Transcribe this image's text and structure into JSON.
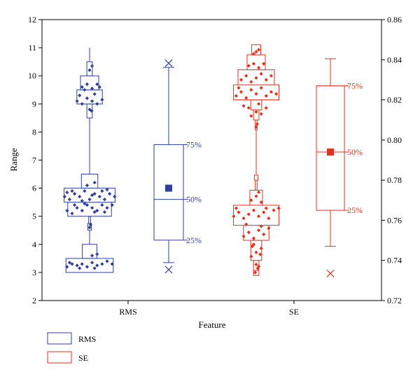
{
  "chart_data": {
    "type": "box",
    "xlabel": "Feature",
    "ylabel": "Range",
    "categories": [
      "RMS",
      "SE"
    ],
    "left_axis": {
      "min": 2,
      "max": 12,
      "ticks": [
        2,
        3,
        4,
        5,
        6,
        7,
        8,
        9,
        10,
        11,
        12
      ],
      "labels": [
        "2",
        "3",
        "4",
        "5",
        "6",
        "7",
        "8",
        "9",
        "10",
        "11",
        "12"
      ]
    },
    "right_axis": {
      "min": 0.72,
      "max": 0.86,
      "ticks": [
        0.72,
        0.74,
        0.76,
        0.78,
        0.8,
        0.82,
        0.84,
        0.86
      ],
      "labels": [
        "0.72",
        "0.74",
        "0.76",
        "0.78",
        "0.80",
        "0.82",
        "0.84",
        "0.86"
      ]
    },
    "colors": {
      "RMS": "#2e3f9e",
      "SE": "#e8301f"
    },
    "series": [
      {
        "name": "RMS",
        "axis": "left",
        "histogram": [
          {
            "lo": 3.0,
            "hi": 3.5,
            "width": 0.52
          },
          {
            "lo": 3.5,
            "hi": 4.0,
            "width": 0.16
          },
          {
            "lo": 4.5,
            "hi": 4.75,
            "width": 0.04
          },
          {
            "lo": 4.75,
            "hi": 5.0,
            "width": 0.02
          },
          {
            "lo": 5.0,
            "hi": 5.5,
            "width": 0.48
          },
          {
            "lo": 5.5,
            "hi": 6.0,
            "width": 0.56
          },
          {
            "lo": 6.0,
            "hi": 6.5,
            "width": 0.18
          },
          {
            "lo": 8.5,
            "hi": 9.0,
            "width": 0.06
          },
          {
            "lo": 9.0,
            "hi": 9.5,
            "width": 0.28
          },
          {
            "lo": 9.5,
            "hi": 10.0,
            "width": 0.2
          },
          {
            "lo": 10.0,
            "hi": 10.5,
            "width": 0.06
          }
        ],
        "line_range": [
          3.0,
          11.0
        ],
        "points": [
          [
            -0.45,
            3.2
          ],
          [
            -0.35,
            3.3
          ],
          [
            -0.25,
            3.25
          ],
          [
            -0.15,
            3.3
          ],
          [
            -0.05,
            3.2
          ],
          [
            0.05,
            3.35
          ],
          [
            0.15,
            3.25
          ],
          [
            0.25,
            3.3
          ],
          [
            0.35,
            3.4
          ],
          [
            0.45,
            3.3
          ],
          [
            -0.4,
            3.35
          ],
          [
            0.1,
            3.15
          ],
          [
            -0.2,
            3.15
          ],
          [
            0.05,
            3.6
          ],
          [
            0.15,
            3.65
          ],
          [
            0.0,
            4.6
          ],
          [
            0.02,
            4.7
          ],
          [
            -0.45,
            5.2
          ],
          [
            -0.35,
            5.1
          ],
          [
            -0.25,
            5.3
          ],
          [
            -0.15,
            5.2
          ],
          [
            -0.05,
            5.4
          ],
          [
            0.05,
            5.3
          ],
          [
            0.15,
            5.2
          ],
          [
            0.25,
            5.4
          ],
          [
            0.35,
            5.3
          ],
          [
            0.45,
            5.4
          ],
          [
            -0.3,
            5.4
          ],
          [
            0.1,
            5.15
          ],
          [
            -0.1,
            5.45
          ],
          [
            0.3,
            5.15
          ],
          [
            -0.5,
            5.7
          ],
          [
            -0.4,
            5.6
          ],
          [
            -0.3,
            5.8
          ],
          [
            -0.2,
            5.7
          ],
          [
            -0.1,
            5.9
          ],
          [
            0.0,
            5.6
          ],
          [
            0.1,
            5.8
          ],
          [
            0.2,
            5.7
          ],
          [
            0.3,
            5.6
          ],
          [
            0.4,
            5.8
          ],
          [
            0.5,
            5.7
          ],
          [
            -0.35,
            5.9
          ],
          [
            0.25,
            5.9
          ],
          [
            -0.15,
            5.55
          ],
          [
            0.35,
            5.95
          ],
          [
            -0.45,
            5.85
          ],
          [
            0.05,
            5.75
          ],
          [
            -0.05,
            6.1
          ],
          [
            0.1,
            6.2
          ],
          [
            0.0,
            8.8
          ],
          [
            0.04,
            8.75
          ],
          [
            -0.25,
            9.1
          ],
          [
            -0.15,
            9.0
          ],
          [
            -0.05,
            9.2
          ],
          [
            0.05,
            9.1
          ],
          [
            0.15,
            9.0
          ],
          [
            0.25,
            9.15
          ],
          [
            -0.2,
            9.3
          ],
          [
            0.1,
            9.35
          ],
          [
            -0.15,
            9.6
          ],
          [
            -0.05,
            9.7
          ],
          [
            0.05,
            9.55
          ],
          [
            0.15,
            9.7
          ],
          [
            0.2,
            9.6
          ],
          [
            -0.1,
            9.5
          ],
          [
            0.0,
            10.2
          ],
          [
            0.05,
            10.35
          ]
        ],
        "box": {
          "p25": 4.15,
          "median": 5.6,
          "p75": 7.55,
          "mean": 6.0,
          "whisker_low": 3.35,
          "whisker_high": 10.3,
          "min": 3.1,
          "max": 10.45
        },
        "box_labels": [
          "25%",
          "50%",
          "75%"
        ]
      },
      {
        "name": "SE",
        "axis": "right",
        "histogram": [
          {
            "lo": 0.7325,
            "hi": 0.735,
            "width": 0.06
          },
          {
            "lo": 0.735,
            "hi": 0.74,
            "width": 0.06
          },
          {
            "lo": 0.74,
            "hi": 0.75,
            "width": 0.12
          },
          {
            "lo": 0.75,
            "hi": 0.7575,
            "width": 0.28
          },
          {
            "lo": 0.7575,
            "hi": 0.7675,
            "width": 0.5
          },
          {
            "lo": 0.7675,
            "hi": 0.775,
            "width": 0.14
          },
          {
            "lo": 0.775,
            "hi": 0.78,
            "width": 0.02
          },
          {
            "lo": 0.78,
            "hi": 0.7825,
            "width": 0.04
          },
          {
            "lo": 0.805,
            "hi": 0.81,
            "width": 0.02
          },
          {
            "lo": 0.81,
            "hi": 0.815,
            "width": 0.06
          },
          {
            "lo": 0.815,
            "hi": 0.82,
            "width": 0.12
          },
          {
            "lo": 0.82,
            "hi": 0.8275,
            "width": 0.5
          },
          {
            "lo": 0.8275,
            "hi": 0.835,
            "width": 0.4
          },
          {
            "lo": 0.835,
            "hi": 0.8425,
            "width": 0.2
          },
          {
            "lo": 0.8425,
            "hi": 0.8475,
            "width": 0.1
          }
        ],
        "line_range": [
          0.7325,
          0.8475
        ],
        "points": [
          [
            -0.02,
            0.734
          ],
          [
            0.03,
            0.736
          ],
          [
            0.0,
            0.738
          ],
          [
            0.05,
            0.737
          ],
          [
            -0.1,
            0.742
          ],
          [
            0.0,
            0.744
          ],
          [
            0.1,
            0.746
          ],
          [
            -0.05,
            0.748
          ],
          [
            0.08,
            0.743
          ],
          [
            -0.08,
            0.747
          ],
          [
            -0.25,
            0.752
          ],
          [
            -0.15,
            0.754
          ],
          [
            -0.05,
            0.751
          ],
          [
            0.05,
            0.755
          ],
          [
            0.15,
            0.753
          ],
          [
            0.25,
            0.756
          ],
          [
            -0.2,
            0.758
          ],
          [
            0.1,
            0.757
          ],
          [
            -0.45,
            0.762
          ],
          [
            -0.35,
            0.764
          ],
          [
            -0.25,
            0.761
          ],
          [
            -0.15,
            0.763
          ],
          [
            -0.05,
            0.765
          ],
          [
            0.05,
            0.762
          ],
          [
            0.15,
            0.764
          ],
          [
            0.25,
            0.761
          ],
          [
            0.35,
            0.765
          ],
          [
            0.45,
            0.766
          ],
          [
            -0.4,
            0.766
          ],
          [
            0.2,
            0.766
          ],
          [
            -0.1,
            0.77
          ],
          [
            0.0,
            0.772
          ],
          [
            0.1,
            0.769
          ],
          [
            0.05,
            0.774
          ],
          [
            0.0,
            0.8065
          ],
          [
            0.02,
            0.808
          ],
          [
            -0.1,
            0.812
          ],
          [
            0.0,
            0.814
          ],
          [
            0.1,
            0.813
          ],
          [
            -0.25,
            0.817
          ],
          [
            -0.15,
            0.816
          ],
          [
            0.05,
            0.818
          ],
          [
            0.2,
            0.816
          ],
          [
            -0.4,
            0.822
          ],
          [
            -0.3,
            0.824
          ],
          [
            -0.2,
            0.821
          ],
          [
            -0.1,
            0.825
          ],
          [
            0.0,
            0.823
          ],
          [
            0.1,
            0.826
          ],
          [
            0.2,
            0.822
          ],
          [
            0.3,
            0.824
          ],
          [
            0.4,
            0.823
          ],
          [
            -0.35,
            0.826
          ],
          [
            -0.3,
            0.83
          ],
          [
            -0.2,
            0.832
          ],
          [
            -0.1,
            0.829
          ],
          [
            0.0,
            0.831
          ],
          [
            0.1,
            0.833
          ],
          [
            0.2,
            0.83
          ],
          [
            0.3,
            0.832
          ],
          [
            -0.15,
            0.837
          ],
          [
            -0.05,
            0.838
          ],
          [
            0.05,
            0.836
          ],
          [
            0.15,
            0.838
          ],
          [
            -0.05,
            0.843
          ],
          [
            0.05,
            0.845
          ],
          [
            0.0,
            0.844
          ]
        ],
        "box": {
          "p25": 0.765,
          "median": 0.794,
          "p75": 0.827,
          "mean": 0.794,
          "whisker_low": 0.747,
          "whisker_high": 0.8405,
          "min": 0.7335
        },
        "box_labels": [
          "25%",
          "50%",
          "75%"
        ]
      }
    ],
    "legend": {
      "placement": "bottom-left",
      "entries": [
        "RMS",
        "SE"
      ]
    }
  }
}
